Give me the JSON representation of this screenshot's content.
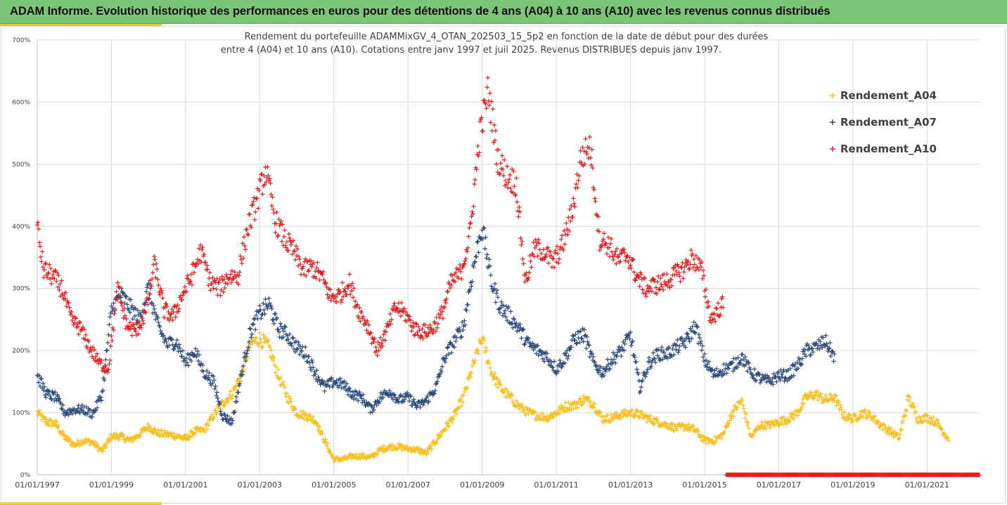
{
  "header": {
    "title": "ADAM Informe. Evolution historique des performances en euros pour des détentions de 4 ans (A04) à 10 ans (A10) avec les revenus connus distribués"
  },
  "chart_data": {
    "type": "scatter",
    "subtitle_line1": "Rendement du portefeuille ADAMMixGV_4_OTAN_202503_15_5p2  en fonction de la date de début pour des durées",
    "subtitle_line2": "entre 4 (A04) et 10 ans (A10). Cotations entre janv 1997 et juil 2025. Revenus DISTRIBUES depuis janv 1997.",
    "x_range": [
      "1997-01-01",
      "2022-06-01"
    ],
    "ylim": [
      0,
      700
    ],
    "y_unit": "%",
    "grid": true,
    "legend_position": "top-right",
    "y_ticks": [
      "0%",
      "100%",
      "200%",
      "300%",
      "400%",
      "500%",
      "600%",
      "700%"
    ],
    "x_ticks": [
      "01/01/1997",
      "01/01/1999",
      "01/01/2001",
      "01/01/2003",
      "01/01/2005",
      "01/01/2007",
      "01/01/2009",
      "01/01/2011",
      "01/01/2013",
      "01/01/2015",
      "01/01/2017",
      "01/01/2019",
      "01/01/2021"
    ],
    "series": [
      {
        "name": "Rendement_A04",
        "color": "#f5c023",
        "marker": "+",
        "x_start": "1997-01",
        "x_end": "2021-08",
        "points": [
          [
            "1997-01",
            100
          ],
          [
            "1997-04",
            85
          ],
          [
            "1997-07",
            82
          ],
          [
            "1997-10",
            60
          ],
          [
            "1998-01",
            48
          ],
          [
            "1998-04",
            55
          ],
          [
            "1998-07",
            52
          ],
          [
            "1998-10",
            38
          ],
          [
            "1999-01",
            62
          ],
          [
            "1999-04",
            62
          ],
          [
            "1999-07",
            55
          ],
          [
            "1999-10",
            65
          ],
          [
            "2000-01",
            78
          ],
          [
            "2000-04",
            67
          ],
          [
            "2000-07",
            65
          ],
          [
            "2000-10",
            63
          ],
          [
            "2001-01",
            58
          ],
          [
            "2001-04",
            70
          ],
          [
            "2001-07",
            72
          ],
          [
            "2001-10",
            95
          ],
          [
            "2002-01",
            115
          ],
          [
            "2002-04",
            130
          ],
          [
            "2002-07",
            160
          ],
          [
            "2002-10",
            210
          ],
          [
            "2003-01",
            220
          ],
          [
            "2003-04",
            205
          ],
          [
            "2003-07",
            160
          ],
          [
            "2003-10",
            125
          ],
          [
            "2004-01",
            100
          ],
          [
            "2004-04",
            95
          ],
          [
            "2004-07",
            88
          ],
          [
            "2004-10",
            55
          ],
          [
            "2005-01",
            25
          ],
          [
            "2005-04",
            25
          ],
          [
            "2005-07",
            30
          ],
          [
            "2005-10",
            30
          ],
          [
            "2006-01",
            28
          ],
          [
            "2006-04",
            40
          ],
          [
            "2006-07",
            45
          ],
          [
            "2006-10",
            45
          ],
          [
            "2007-01",
            42
          ],
          [
            "2007-04",
            40
          ],
          [
            "2007-07",
            35
          ],
          [
            "2007-10",
            55
          ],
          [
            "2008-01",
            75
          ],
          [
            "2008-04",
            95
          ],
          [
            "2008-07",
            125
          ],
          [
            "2008-10",
            175
          ],
          [
            "2009-01",
            220
          ],
          [
            "2009-04",
            165
          ],
          [
            "2009-07",
            140
          ],
          [
            "2009-10",
            125
          ],
          [
            "2010-01",
            110
          ],
          [
            "2010-04",
            100
          ],
          [
            "2010-07",
            95
          ],
          [
            "2010-10",
            92
          ],
          [
            "2011-01",
            100
          ],
          [
            "2011-04",
            110
          ],
          [
            "2011-07",
            112
          ],
          [
            "2011-10",
            122
          ],
          [
            "2012-01",
            115
          ],
          [
            "2012-04",
            90
          ],
          [
            "2012-07",
            92
          ],
          [
            "2012-10",
            97
          ],
          [
            "2013-01",
            100
          ],
          [
            "2013-04",
            97
          ],
          [
            "2013-07",
            90
          ],
          [
            "2013-10",
            85
          ],
          [
            "2014-01",
            80
          ],
          [
            "2014-04",
            75
          ],
          [
            "2014-07",
            78
          ],
          [
            "2014-10",
            72
          ],
          [
            "2015-01",
            55
          ],
          [
            "2015-04",
            55
          ],
          [
            "2015-07",
            65
          ],
          [
            "2015-10",
            100
          ],
          [
            "2016-01",
            120
          ],
          [
            "2016-04",
            60
          ],
          [
            "2016-07",
            80
          ],
          [
            "2016-10",
            80
          ],
          [
            "2017-01",
            85
          ],
          [
            "2017-04",
            90
          ],
          [
            "2017-07",
            100
          ],
          [
            "2017-10",
            125
          ],
          [
            "2018-01",
            130
          ],
          [
            "2018-04",
            120
          ],
          [
            "2018-07",
            125
          ],
          [
            "2018-10",
            95
          ],
          [
            "2019-01",
            90
          ],
          [
            "2019-04",
            100
          ],
          [
            "2019-07",
            95
          ],
          [
            "2019-10",
            80
          ],
          [
            "2020-01",
            70
          ],
          [
            "2020-04",
            60
          ],
          [
            "2020-07",
            125
          ],
          [
            "2020-10",
            90
          ],
          [
            "2021-01",
            92
          ],
          [
            "2021-04",
            85
          ],
          [
            "2021-08",
            58
          ]
        ]
      },
      {
        "name": "Rendement_A07",
        "color": "#2e4b7a",
        "marker": "+",
        "x_start": "1997-01",
        "x_end": "2018-07",
        "points": [
          [
            "1997-01",
            160
          ],
          [
            "1997-04",
            130
          ],
          [
            "1997-07",
            125
          ],
          [
            "1997-10",
            100
          ],
          [
            "1998-01",
            105
          ],
          [
            "1998-04",
            105
          ],
          [
            "1998-07",
            98
          ],
          [
            "1998-10",
            130
          ],
          [
            "1999-01",
            265
          ],
          [
            "1999-04",
            290
          ],
          [
            "1999-07",
            270
          ],
          [
            "1999-10",
            250
          ],
          [
            "2000-01",
            300
          ],
          [
            "2000-04",
            240
          ],
          [
            "2000-07",
            210
          ],
          [
            "2000-10",
            215
          ],
          [
            "2001-01",
            180
          ],
          [
            "2001-04",
            200
          ],
          [
            "2001-07",
            165
          ],
          [
            "2001-10",
            150
          ],
          [
            "2002-01",
            95
          ],
          [
            "2002-04",
            85
          ],
          [
            "2002-07",
            160
          ],
          [
            "2002-10",
            230
          ],
          [
            "2003-01",
            260
          ],
          [
            "2003-04",
            275
          ],
          [
            "2003-07",
            235
          ],
          [
            "2003-10",
            225
          ],
          [
            "2004-01",
            205
          ],
          [
            "2004-04",
            195
          ],
          [
            "2004-07",
            165
          ],
          [
            "2004-10",
            140
          ],
          [
            "2005-01",
            150
          ],
          [
            "2005-04",
            145
          ],
          [
            "2005-07",
            130
          ],
          [
            "2005-10",
            125
          ],
          [
            "2006-01",
            105
          ],
          [
            "2006-04",
            125
          ],
          [
            "2006-07",
            135
          ],
          [
            "2006-10",
            120
          ],
          [
            "2007-01",
            125
          ],
          [
            "2007-04",
            110
          ],
          [
            "2007-07",
            120
          ],
          [
            "2007-10",
            140
          ],
          [
            "2008-01",
            190
          ],
          [
            "2008-04",
            215
          ],
          [
            "2008-07",
            240
          ],
          [
            "2008-10",
            330
          ],
          [
            "2009-01",
            400
          ],
          [
            "2009-04",
            310
          ],
          [
            "2009-07",
            270
          ],
          [
            "2009-10",
            255
          ],
          [
            "2010-01",
            235
          ],
          [
            "2010-04",
            210
          ],
          [
            "2010-07",
            200
          ],
          [
            "2010-10",
            190
          ],
          [
            "2011-01",
            170
          ],
          [
            "2011-04",
            190
          ],
          [
            "2011-07",
            220
          ],
          [
            "2011-10",
            225
          ],
          [
            "2012-01",
            180
          ],
          [
            "2012-04",
            165
          ],
          [
            "2012-07",
            185
          ],
          [
            "2012-10",
            200
          ],
          [
            "2013-01",
            225
          ],
          [
            "2013-04",
            140
          ],
          [
            "2013-07",
            180
          ],
          [
            "2013-10",
            195
          ],
          [
            "2014-01",
            195
          ],
          [
            "2014-04",
            205
          ],
          [
            "2014-07",
            215
          ],
          [
            "2014-10",
            240
          ],
          [
            "2015-01",
            185
          ],
          [
            "2015-04",
            160
          ],
          [
            "2015-07",
            170
          ],
          [
            "2015-10",
            175
          ],
          [
            "2016-01",
            190
          ],
          [
            "2016-04",
            165
          ],
          [
            "2016-07",
            155
          ],
          [
            "2016-10",
            150
          ],
          [
            "2017-01",
            160
          ],
          [
            "2017-04",
            160
          ],
          [
            "2017-07",
            175
          ],
          [
            "2017-10",
            200
          ],
          [
            "2018-01",
            205
          ],
          [
            "2018-04",
            215
          ],
          [
            "2018-07",
            190
          ]
        ]
      },
      {
        "name": "Rendement_A10",
        "color": "#e02020",
        "marker": "+",
        "x_start": "1997-01",
        "x_end": "2015-07",
        "zero_from": "2015-08",
        "zero_to": "2022-06",
        "points": [
          [
            "1997-01",
            400
          ],
          [
            "1997-03",
            330
          ],
          [
            "1997-06",
            320
          ],
          [
            "1997-09",
            300
          ],
          [
            "1997-12",
            250
          ],
          [
            "1998-03",
            235
          ],
          [
            "1998-06",
            205
          ],
          [
            "1998-09",
            180
          ],
          [
            "1998-12",
            170
          ],
          [
            "1999-03",
            300
          ],
          [
            "1999-06",
            240
          ],
          [
            "1999-09",
            230
          ],
          [
            "1999-12",
            260
          ],
          [
            "2000-03",
            340
          ],
          [
            "2000-06",
            265
          ],
          [
            "2000-09",
            255
          ],
          [
            "2000-12",
            290
          ],
          [
            "2001-03",
            320
          ],
          [
            "2001-06",
            360
          ],
          [
            "2001-09",
            310
          ],
          [
            "2001-12",
            300
          ],
          [
            "2002-03",
            320
          ],
          [
            "2002-06",
            320
          ],
          [
            "2002-09",
            395
          ],
          [
            "2002-12",
            440
          ],
          [
            "2003-03",
            490
          ],
          [
            "2003-06",
            410
          ],
          [
            "2003-09",
            380
          ],
          [
            "2003-12",
            360
          ],
          [
            "2004-03",
            330
          ],
          [
            "2004-06",
            335
          ],
          [
            "2004-09",
            320
          ],
          [
            "2004-12",
            285
          ],
          [
            "2005-03",
            290
          ],
          [
            "2005-06",
            310
          ],
          [
            "2005-09",
            265
          ],
          [
            "2005-12",
            240
          ],
          [
            "2006-03",
            200
          ],
          [
            "2006-06",
            230
          ],
          [
            "2006-09",
            270
          ],
          [
            "2006-12",
            260
          ],
          [
            "2007-03",
            235
          ],
          [
            "2007-06",
            230
          ],
          [
            "2007-09",
            235
          ],
          [
            "2007-12",
            260
          ],
          [
            "2008-03",
            310
          ],
          [
            "2008-06",
            325
          ],
          [
            "2008-09",
            385
          ],
          [
            "2008-12",
            540
          ],
          [
            "2009-03",
            620
          ],
          [
            "2009-06",
            510
          ],
          [
            "2009-09",
            480
          ],
          [
            "2009-12",
            470
          ],
          [
            "2010-03",
            310
          ],
          [
            "2010-06",
            365
          ],
          [
            "2010-09",
            360
          ],
          [
            "2010-12",
            340
          ],
          [
            "2011-03",
            370
          ],
          [
            "2011-06",
            420
          ],
          [
            "2011-09",
            510
          ],
          [
            "2011-12",
            530
          ],
          [
            "2012-03",
            380
          ],
          [
            "2012-06",
            370
          ],
          [
            "2012-09",
            345
          ],
          [
            "2012-12",
            355
          ],
          [
            "2013-03",
            320
          ],
          [
            "2013-06",
            300
          ],
          [
            "2013-09",
            305
          ],
          [
            "2013-12",
            310
          ],
          [
            "2014-03",
            320
          ],
          [
            "2014-06",
            330
          ],
          [
            "2014-09",
            350
          ],
          [
            "2014-12",
            330
          ],
          [
            "2015-03",
            250
          ],
          [
            "2015-07",
            275
          ]
        ]
      }
    ]
  }
}
